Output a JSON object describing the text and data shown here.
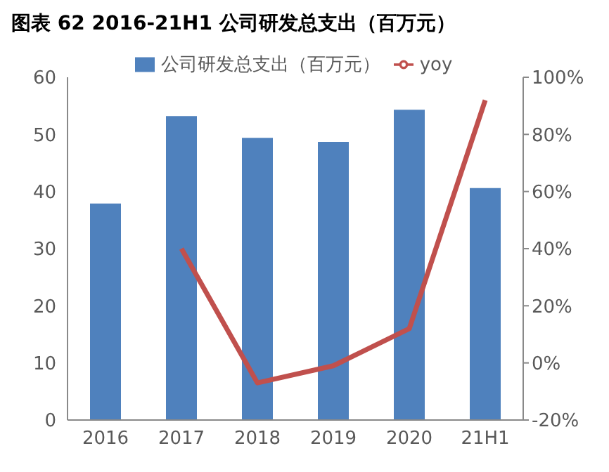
{
  "chart_data": {
    "type": "bar",
    "title": "图表 62 2016-21H1 公司研发总支出（百万元）",
    "categories": [
      "2016",
      "2017",
      "2018",
      "2019",
      "2020",
      "21H1"
    ],
    "series": [
      {
        "name": "公司研发总支出（百万元）",
        "color": "#4f81bd",
        "values": [
          37.9,
          53.2,
          49.4,
          48.7,
          54.3,
          40.6
        ]
      },
      {
        "name": "yoy",
        "type": "line",
        "axis": "y2",
        "color": "#c0504d",
        "values": [
          null,
          40,
          -7,
          -1,
          12,
          92
        ]
      }
    ],
    "ylim": [
      0,
      60
    ],
    "yticks": [
      0,
      10,
      20,
      30,
      40,
      50,
      60
    ],
    "y2lim": [
      -20,
      100
    ],
    "y2ticks": [
      {
        "value": -20,
        "label": "-20%"
      },
      {
        "value": 0,
        "label": "0%"
      },
      {
        "value": 20,
        "label": "20%"
      },
      {
        "value": 40,
        "label": "40%"
      },
      {
        "value": 60,
        "label": "60%"
      },
      {
        "value": 80,
        "label": "80%"
      },
      {
        "value": 100,
        "label": "100%"
      }
    ],
    "grid": false,
    "legend": "top",
    "marker": "none",
    "line_style": "solid"
  }
}
